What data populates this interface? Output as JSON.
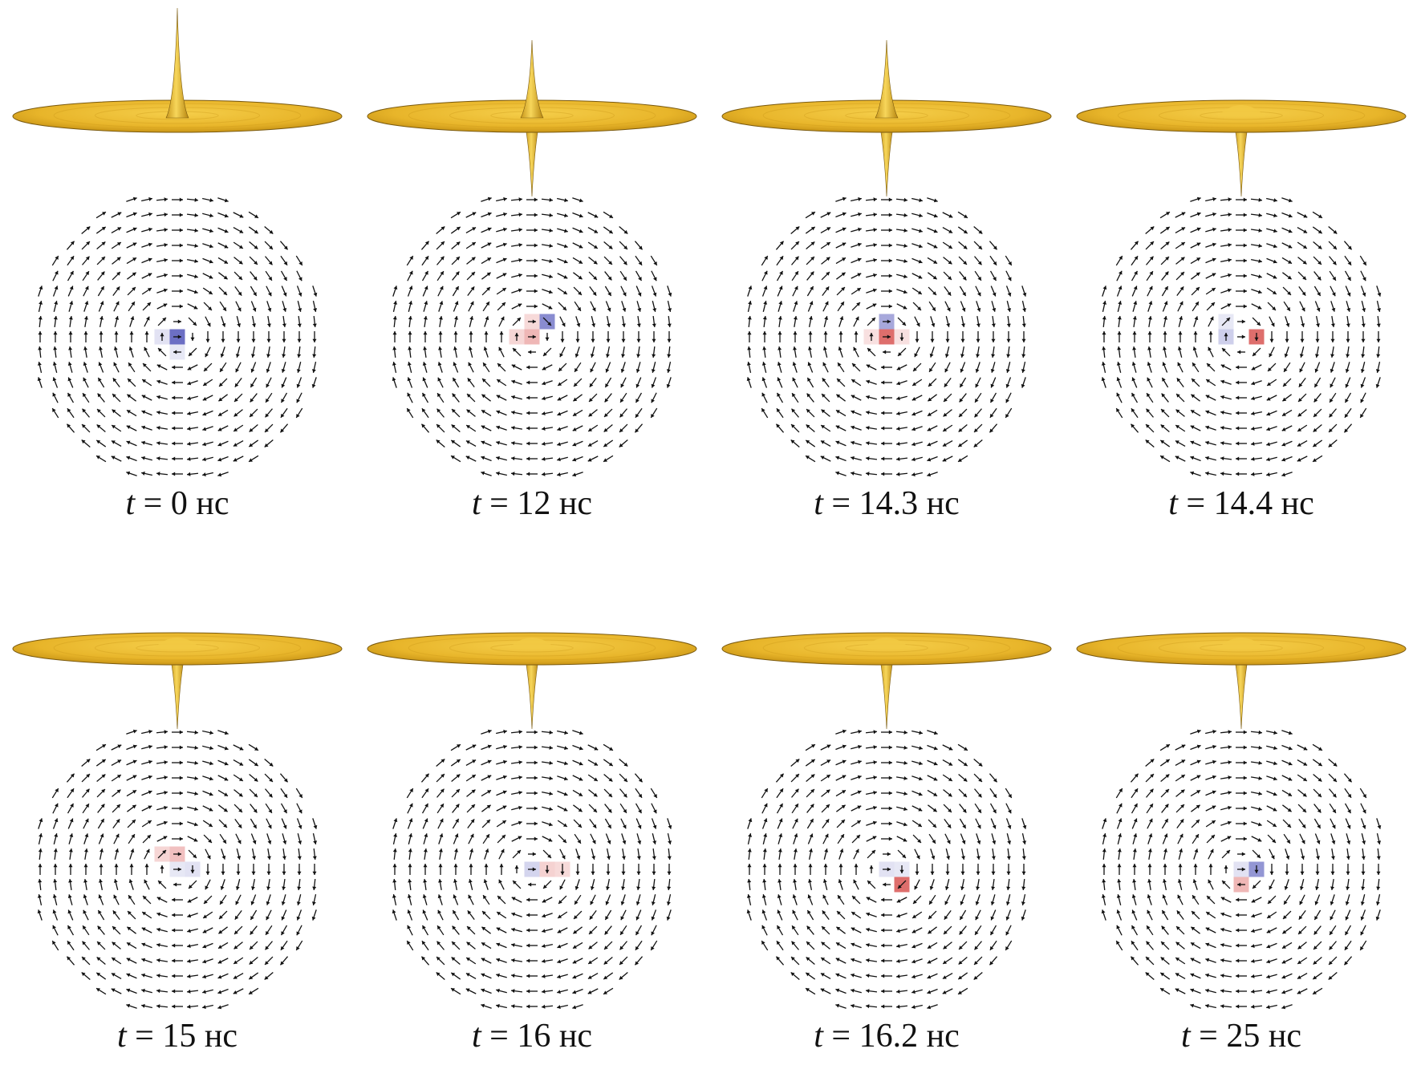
{
  "figure": {
    "panels": [
      {
        "id": "p1",
        "time_label": "= 0 нс",
        "variable": "t",
        "core": "up",
        "cells": [
          {
            "dx": 0,
            "dy": 0,
            "c": "blue",
            "a": 0.75
          },
          {
            "dx": -1,
            "dy": 0,
            "c": "blue",
            "a": 0.15
          },
          {
            "dx": 0,
            "dy": 1,
            "c": "blue",
            "a": 0.12
          }
        ]
      },
      {
        "id": "p2",
        "time_label": "= 12 нс",
        "variable": "t",
        "core": "both",
        "cells": [
          {
            "dx": 1,
            "dy": -1,
            "c": "blue",
            "a": 0.6
          },
          {
            "dx": 0,
            "dy": 0,
            "c": "red",
            "a": 0.35
          },
          {
            "dx": -1,
            "dy": 0,
            "c": "red",
            "a": 0.2
          },
          {
            "dx": 0,
            "dy": -1,
            "c": "red",
            "a": 0.18
          }
        ]
      },
      {
        "id": "p3",
        "time_label": "= 14.3 нс",
        "variable": "t",
        "core": "both",
        "cells": [
          {
            "dx": 0,
            "dy": -1,
            "c": "blue",
            "a": 0.45
          },
          {
            "dx": 0,
            "dy": 0,
            "c": "red",
            "a": 0.7
          },
          {
            "dx": 1,
            "dy": 0,
            "c": "red",
            "a": 0.15
          },
          {
            "dx": -1,
            "dy": 0,
            "c": "red",
            "a": 0.15
          }
        ]
      },
      {
        "id": "p4",
        "time_label": "= 14.4 нс",
        "variable": "t",
        "core": "down",
        "cells": [
          {
            "dx": 1,
            "dy": 0,
            "c": "red",
            "a": 0.7
          },
          {
            "dx": -1,
            "dy": 0,
            "c": "blue",
            "a": 0.25
          },
          {
            "dx": -1,
            "dy": -1,
            "c": "blue",
            "a": 0.12
          }
        ]
      },
      {
        "id": "p5",
        "time_label": "= 15 нс",
        "variable": "t",
        "core": "down",
        "cells": [
          {
            "dx": 0,
            "dy": -1,
            "c": "red",
            "a": 0.3
          },
          {
            "dx": -1,
            "dy": -1,
            "c": "red",
            "a": 0.2
          },
          {
            "dx": 1,
            "dy": 0,
            "c": "blue",
            "a": 0.15
          },
          {
            "dx": 0,
            "dy": 0,
            "c": "blue",
            "a": 0.12
          }
        ]
      },
      {
        "id": "p6",
        "time_label": "= 16 нс",
        "variable": "t",
        "core": "down",
        "cells": [
          {
            "dx": 0,
            "dy": 0,
            "c": "blue",
            "a": 0.22
          },
          {
            "dx": 1,
            "dy": 0,
            "c": "red",
            "a": 0.22
          },
          {
            "dx": 2,
            "dy": 0,
            "c": "red",
            "a": 0.18
          }
        ]
      },
      {
        "id": "p7",
        "time_label": "= 16.2 нс",
        "variable": "t",
        "core": "down",
        "cells": [
          {
            "dx": 1,
            "dy": 1,
            "c": "red",
            "a": 0.7
          },
          {
            "dx": 0,
            "dy": 0,
            "c": "blue",
            "a": 0.15
          },
          {
            "dx": 1,
            "dy": 0,
            "c": "blue",
            "a": 0.12
          }
        ]
      },
      {
        "id": "p8",
        "time_label": "= 25 нс",
        "variable": "t",
        "core": "down",
        "cells": [
          {
            "dx": 1,
            "dy": 0,
            "c": "blue",
            "a": 0.55
          },
          {
            "dx": 0,
            "dy": 1,
            "c": "red",
            "a": 0.35
          },
          {
            "dx": 0,
            "dy": 0,
            "c": "blue",
            "a": 0.15
          }
        ]
      }
    ]
  },
  "colors": {
    "surface": "#E8B52A",
    "surface_edge": "#7A5A10",
    "blue_cell": "#3B3FB0",
    "red_cell": "#D0302E",
    "arrow": "#111111"
  }
}
